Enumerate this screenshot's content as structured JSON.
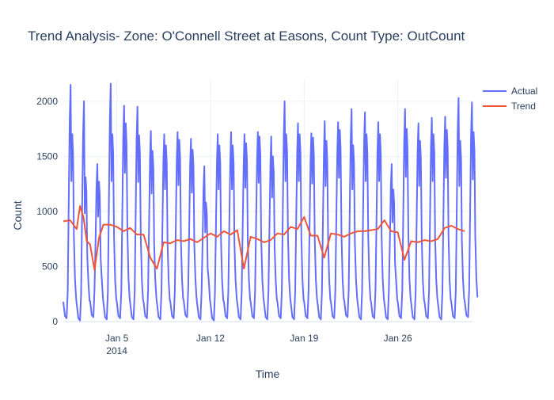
{
  "chart_data": {
    "type": "line",
    "title": "Trend Analysis- Zone: O'Connell Street at Easons, Count Type: OutCount",
    "xlabel": "Time",
    "ylabel": "Count",
    "ylim": [
      0,
      2200
    ],
    "xlim": [
      "2014-01-01",
      "2014-01-31"
    ],
    "y_ticks": [
      0,
      500,
      1000,
      1500,
      2000
    ],
    "x_ticks": [
      {
        "date": "2014-01-05",
        "label": "Jan 5",
        "sublabel": "2014"
      },
      {
        "date": "2014-01-12",
        "label": "Jan 12",
        "sublabel": ""
      },
      {
        "date": "2014-01-19",
        "label": "Jan 19",
        "sublabel": ""
      },
      {
        "date": "2014-01-26",
        "label": "Jan 26",
        "sublabel": ""
      }
    ],
    "grid": true,
    "legend_position": "top-right",
    "series": [
      {
        "name": "Actual",
        "color": "#636efa",
        "kind": "daily-peaks",
        "dates": [
          "2014-01-01",
          "2014-01-02",
          "2014-01-03",
          "2014-01-04",
          "2014-01-05",
          "2014-01-06",
          "2014-01-07",
          "2014-01-08",
          "2014-01-09",
          "2014-01-10",
          "2014-01-11",
          "2014-01-12",
          "2014-01-13",
          "2014-01-14",
          "2014-01-15",
          "2014-01-16",
          "2014-01-17",
          "2014-01-18",
          "2014-01-19",
          "2014-01-20",
          "2014-01-21",
          "2014-01-22",
          "2014-01-23",
          "2014-01-24",
          "2014-01-25",
          "2014-01-26",
          "2014-01-27",
          "2014-01-28",
          "2014-01-29",
          "2014-01-30",
          "2014-01-31"
        ],
        "daily_peak": [
          2150,
          2000,
          1430,
          2160,
          1960,
          1950,
          1730,
          1700,
          1720,
          1660,
          1410,
          1700,
          1720,
          1700,
          1720,
          1680,
          2000,
          1800,
          1710,
          1820,
          1810,
          1930,
          1900,
          1810,
          1430,
          1930,
          1800,
          1850,
          1860,
          2030,
          1990
        ],
        "daily_second_peak": [
          1700,
          1310,
          1270,
          1700,
          1800,
          1690,
          1550,
          1600,
          1650,
          1560,
          1080,
          1600,
          1600,
          1620,
          1680,
          1500,
          1700,
          1700,
          1670,
          1640,
          1740,
          1600,
          1700,
          1700,
          1200,
          1750,
          1640,
          1700,
          1740,
          1640,
          1720
        ],
        "daily_trough": [
          30,
          10,
          40,
          20,
          30,
          20,
          30,
          20,
          30,
          40,
          20,
          10,
          30,
          20,
          30,
          20,
          30,
          20,
          30,
          20,
          30,
          40,
          20,
          30,
          20,
          30,
          20,
          30,
          20,
          30,
          40
        ]
      },
      {
        "name": "Trend",
        "color": "#ef553b",
        "x": [
          "2014-01-01",
          "2014-01-01T12:00",
          "2014-01-02",
          "2014-01-02T06:00",
          "2014-01-02T12:00",
          "2014-01-02T18:00",
          "2014-01-03",
          "2014-01-03T08:00",
          "2014-01-03T16:00",
          "2014-01-04",
          "2014-01-04T12:00",
          "2014-01-05",
          "2014-01-05T12:00",
          "2014-01-06",
          "2014-01-06T12:00",
          "2014-01-07",
          "2014-01-07T12:00",
          "2014-01-08",
          "2014-01-08T12:00",
          "2014-01-09",
          "2014-01-09T12:00",
          "2014-01-10",
          "2014-01-10T12:00",
          "2014-01-11",
          "2014-01-11T12:00",
          "2014-01-12",
          "2014-01-12T12:00",
          "2014-01-13",
          "2014-01-13T12:00",
          "2014-01-14",
          "2014-01-14T12:00",
          "2014-01-15",
          "2014-01-15T12:00",
          "2014-01-16",
          "2014-01-16T12:00",
          "2014-01-17",
          "2014-01-17T12:00",
          "2014-01-18",
          "2014-01-18T12:00",
          "2014-01-19",
          "2014-01-19T12:00",
          "2014-01-20",
          "2014-01-20T12:00",
          "2014-01-21",
          "2014-01-21T12:00",
          "2014-01-22",
          "2014-01-22T12:00",
          "2014-01-23",
          "2014-01-23T12:00",
          "2014-01-24",
          "2014-01-24T12:00",
          "2014-01-25",
          "2014-01-25T12:00",
          "2014-01-26",
          "2014-01-26T12:00",
          "2014-01-27",
          "2014-01-27T12:00",
          "2014-01-28",
          "2014-01-28T12:00",
          "2014-01-29",
          "2014-01-29T12:00",
          "2014-01-30",
          "2014-01-30T12:00",
          "2014-01-31"
        ],
        "values": [
          910,
          920,
          840,
          1050,
          950,
          730,
          700,
          470,
          760,
          880,
          880,
          860,
          820,
          850,
          790,
          790,
          580,
          480,
          720,
          710,
          740,
          730,
          750,
          720,
          760,
          800,
          770,
          820,
          790,
          830,
          480,
          770,
          750,
          720,
          740,
          800,
          790,
          860,
          840,
          950,
          780,
          780,
          580,
          800,
          790,
          770,
          800,
          820,
          820,
          830,
          840,
          920,
          820,
          810,
          560,
          730,
          720,
          740,
          730,
          750,
          850,
          870,
          840,
          820
        ]
      }
    ]
  }
}
